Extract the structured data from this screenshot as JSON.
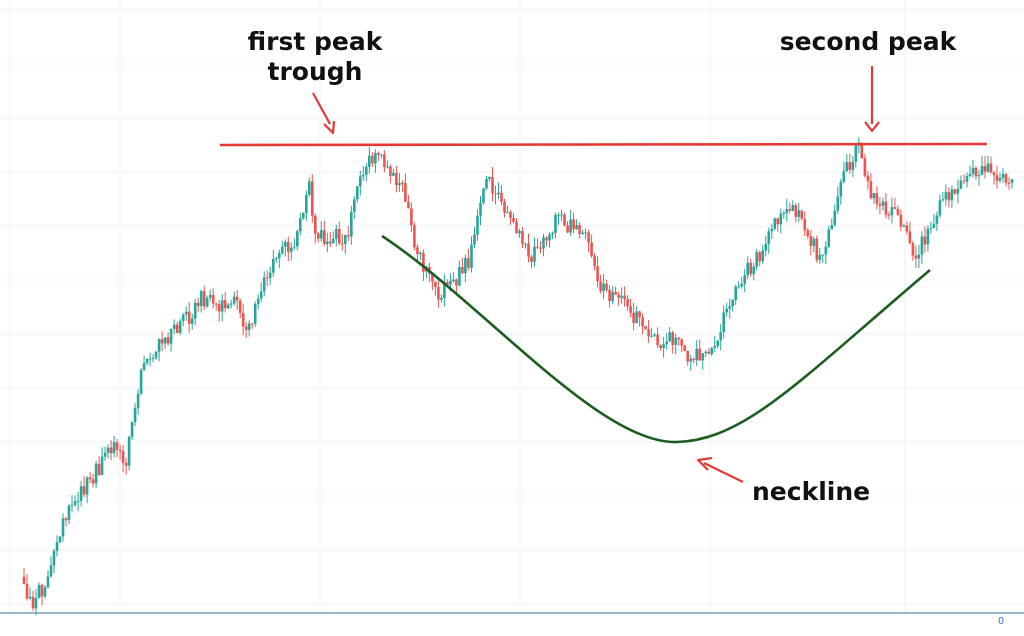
{
  "chart_data": {
    "type": "candlestick",
    "pattern": "cup and handle",
    "grid": true,
    "colors": {
      "up": "#26a69a",
      "down": "#ef5350",
      "resistance": "#e53935",
      "curve": "#1b5e20",
      "arrow": "#e53935",
      "grid": "#eef1f4",
      "axis": "#5b8bb0"
    },
    "annotations": [
      {
        "id": "first-peak",
        "text": "first peak"
      },
      {
        "id": "trough",
        "text": "trough"
      },
      {
        "id": "second-peak",
        "text": "second peak"
      },
      {
        "id": "neckline",
        "text": "neckline"
      }
    ],
    "x_axis_label": "0",
    "price_path": [
      [
        0,
        68
      ],
      [
        5,
        60
      ],
      [
        12,
        62
      ],
      [
        20,
        65
      ],
      [
        30,
        75
      ],
      [
        42,
        85
      ],
      [
        58,
        93
      ],
      [
        70,
        97
      ],
      [
        90,
        107
      ],
      [
        105,
        103
      ],
      [
        120,
        130
      ],
      [
        140,
        137
      ],
      [
        155,
        141
      ],
      [
        170,
        145
      ],
      [
        180,
        150
      ],
      [
        200,
        148
      ],
      [
        210,
        150
      ],
      [
        220,
        150
      ],
      [
        228,
        138
      ],
      [
        245,
        155
      ],
      [
        260,
        164
      ],
      [
        280,
        168
      ],
      [
        292,
        183
      ],
      [
        300,
        168
      ],
      [
        315,
        169
      ],
      [
        330,
        168
      ],
      [
        345,
        186
      ],
      [
        360,
        193
      ],
      [
        375,
        187
      ],
      [
        390,
        182
      ],
      [
        400,
        164
      ],
      [
        415,
        157
      ],
      [
        425,
        152
      ],
      [
        440,
        155
      ],
      [
        455,
        161
      ],
      [
        465,
        175
      ],
      [
        475,
        186
      ],
      [
        490,
        177
      ],
      [
        505,
        171
      ],
      [
        520,
        163
      ],
      [
        535,
        167
      ],
      [
        545,
        174
      ],
      [
        560,
        171
      ],
      [
        575,
        169
      ],
      [
        590,
        153
      ],
      [
        605,
        151
      ],
      [
        620,
        146
      ],
      [
        635,
        143
      ],
      [
        650,
        137
      ],
      [
        665,
        138
      ],
      [
        680,
        133
      ],
      [
        695,
        133
      ],
      [
        710,
        139
      ],
      [
        725,
        150
      ],
      [
        740,
        158
      ],
      [
        755,
        163
      ],
      [
        770,
        174
      ],
      [
        785,
        178
      ],
      [
        800,
        172
      ],
      [
        815,
        161
      ],
      [
        825,
        170
      ],
      [
        835,
        183
      ],
      [
        845,
        190
      ],
      [
        855,
        194
      ],
      [
        865,
        183
      ],
      [
        880,
        177
      ],
      [
        895,
        176
      ],
      [
        905,
        168
      ],
      [
        915,
        163
      ],
      [
        925,
        170
      ],
      [
        940,
        178
      ],
      [
        955,
        184
      ],
      [
        970,
        187
      ],
      [
        985,
        188
      ],
      [
        1000,
        185
      ],
      [
        1012,
        185
      ]
    ]
  }
}
